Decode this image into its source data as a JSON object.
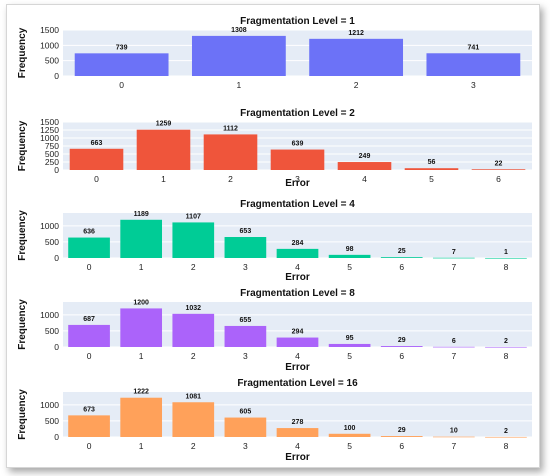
{
  "chart_data": [
    {
      "type": "bar",
      "title": "Fragmentation Level = 1",
      "xlabel": "",
      "ylabel": "Frequency",
      "color": "#6c72f7",
      "categories": [
        "0",
        "1",
        "2",
        "3"
      ],
      "values": [
        739,
        1308,
        1212,
        741
      ],
      "yticks": [
        0,
        500,
        1000,
        1500
      ],
      "ylim": [
        0,
        1500
      ]
    },
    {
      "type": "bar",
      "title": "Fragmentation Level = 2",
      "xlabel": "Error",
      "ylabel": "Frequency",
      "color": "#ef553b",
      "categories": [
        "0",
        "1",
        "2",
        "3",
        "4",
        "5",
        "6"
      ],
      "values": [
        663,
        1259,
        1112,
        639,
        249,
        56,
        22
      ],
      "yticks": [
        0,
        250,
        500,
        750,
        1000,
        1250,
        1500
      ],
      "ylim": [
        0,
        1500
      ]
    },
    {
      "type": "bar",
      "title": "Fragmentation Level = 4",
      "xlabel": "Error",
      "ylabel": "Frequency",
      "color": "#00cc96",
      "categories": [
        "0",
        "1",
        "2",
        "3",
        "4",
        "5",
        "6",
        "7",
        "8"
      ],
      "values": [
        636,
        1189,
        1107,
        653,
        284,
        98,
        25,
        7,
        1
      ],
      "yticks": [
        0,
        500,
        1000
      ],
      "ylim": [
        0,
        1400
      ]
    },
    {
      "type": "bar",
      "title": "Fragmentation Level = 8",
      "xlabel": "Error",
      "ylabel": "Frequency",
      "color": "#ab63fa",
      "categories": [
        "0",
        "1",
        "2",
        "3",
        "4",
        "5",
        "6",
        "7",
        "8"
      ],
      "values": [
        687,
        1200,
        1032,
        655,
        294,
        95,
        29,
        6,
        2
      ],
      "yticks": [
        0,
        500,
        1000
      ],
      "ylim": [
        0,
        1400
      ]
    },
    {
      "type": "bar",
      "title": "Fragmentation Level = 16",
      "xlabel": "Error",
      "ylabel": "Frequency",
      "color": "#ffa15a",
      "categories": [
        "0",
        "1",
        "2",
        "3",
        "4",
        "5",
        "6",
        "7",
        "8"
      ],
      "values": [
        673,
        1222,
        1081,
        605,
        278,
        100,
        29,
        10,
        2
      ],
      "yticks": [
        0,
        500,
        1000
      ],
      "ylim": [
        0,
        1400
      ]
    }
  ]
}
